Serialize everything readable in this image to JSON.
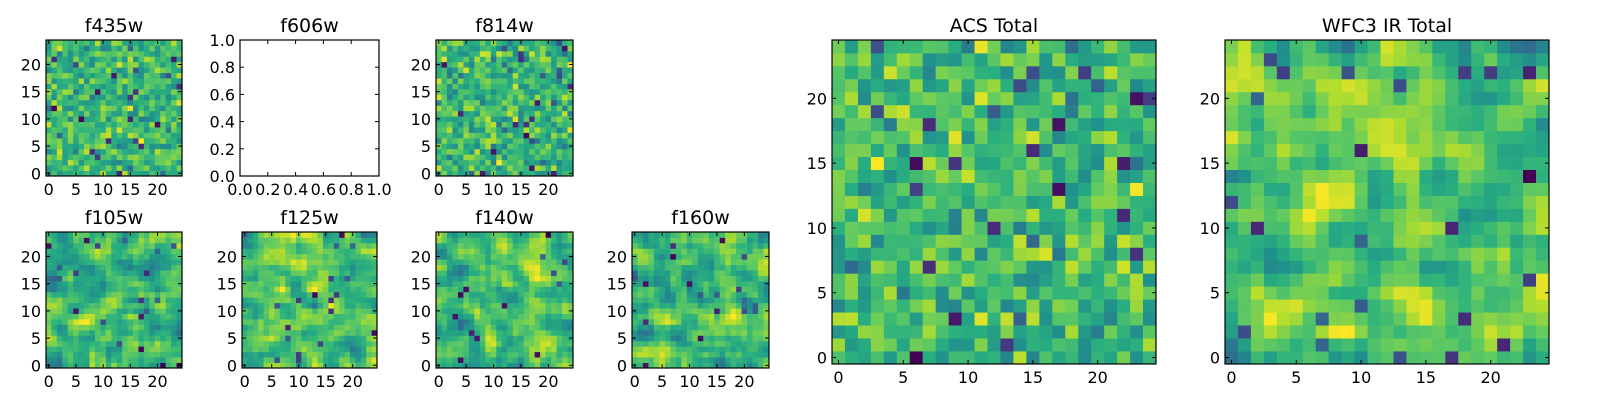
{
  "colormap": "viridis",
  "chart_data": [
    {
      "type": "heatmap",
      "title": "f435w",
      "xticks": [
        0,
        5,
        10,
        15,
        20
      ],
      "yticks": [
        0,
        5,
        10,
        15,
        20
      ],
      "xlim": [
        0,
        24
      ],
      "ylim": [
        0,
        24
      ],
      "grid": "24x24",
      "noise": "speckle",
      "seed": 11
    },
    {
      "type": "empty",
      "title": "f606w",
      "xticks": [
        "0.0",
        "0.2",
        "0.4",
        "0.6",
        "0.8",
        "1.0"
      ],
      "yticks": [
        "0.0",
        "0.2",
        "0.4",
        "0.6",
        "0.8",
        "1.0"
      ],
      "xlim": [
        0,
        1
      ],
      "ylim": [
        0,
        1
      ]
    },
    {
      "type": "heatmap",
      "title": "f814w",
      "xticks": [
        0,
        5,
        10,
        15,
        20
      ],
      "yticks": [
        0,
        5,
        10,
        15,
        20
      ],
      "xlim": [
        0,
        24
      ],
      "ylim": [
        0,
        24
      ],
      "grid": "24x24",
      "noise": "speckle",
      "seed": 23
    },
    {
      "type": "heatmap",
      "title": "f105w",
      "xticks": [
        0,
        5,
        10,
        15,
        20
      ],
      "yticks": [
        0,
        5,
        10,
        15,
        20
      ],
      "xlim": [
        0,
        24
      ],
      "ylim": [
        0,
        24
      ],
      "grid": "24x24",
      "noise": "smooth",
      "seed": 37
    },
    {
      "type": "heatmap",
      "title": "f125w",
      "xticks": [
        0,
        5,
        10,
        15,
        20
      ],
      "yticks": [
        0,
        5,
        10,
        15,
        20
      ],
      "xlim": [
        0,
        24
      ],
      "ylim": [
        0,
        24
      ],
      "grid": "24x24",
      "noise": "smooth",
      "seed": 41
    },
    {
      "type": "heatmap",
      "title": "f140w",
      "xticks": [
        0,
        5,
        10,
        15,
        20
      ],
      "yticks": [
        0,
        5,
        10,
        15,
        20
      ],
      "xlim": [
        0,
        24
      ],
      "ylim": [
        0,
        24
      ],
      "grid": "24x24",
      "noise": "smooth",
      "seed": 53
    },
    {
      "type": "heatmap",
      "title": "f160w",
      "xticks": [
        0,
        5,
        10,
        15,
        20
      ],
      "yticks": [
        0,
        5,
        10,
        15,
        20
      ],
      "xlim": [
        0,
        24
      ],
      "ylim": [
        0,
        24
      ],
      "grid": "24x24",
      "noise": "smooth",
      "seed": 67
    },
    {
      "type": "heatmap",
      "title": "ACS Total",
      "xticks": [
        0,
        5,
        10,
        15,
        20
      ],
      "yticks": [
        0,
        5,
        10,
        15,
        20
      ],
      "xlim": [
        0,
        24
      ],
      "ylim": [
        0,
        24
      ],
      "grid": "24x24",
      "noise": "speckle",
      "seed": 79
    },
    {
      "type": "heatmap",
      "title": "WFC3 IR Total",
      "xticks": [
        0,
        5,
        10,
        15,
        20
      ],
      "yticks": [
        0,
        5,
        10,
        15,
        20
      ],
      "xlim": [
        0,
        24
      ],
      "ylim": [
        0,
        24
      ],
      "grid": "24x24",
      "noise": "smooth",
      "seed": 97
    }
  ]
}
